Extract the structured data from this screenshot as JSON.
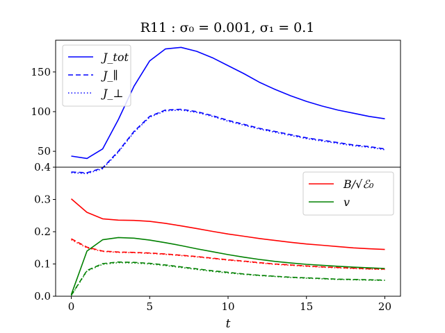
{
  "chart_data": [
    {
      "type": "line",
      "title": "R11 : σ₀ = 0.001, σ₁ = 0.1",
      "x": [
        0,
        1,
        2,
        3,
        4,
        5,
        6,
        7,
        8,
        9,
        10,
        11,
        12,
        13,
        14,
        15,
        16,
        17,
        18,
        19,
        20
      ],
      "xlim": [
        -1,
        21
      ],
      "ylim": [
        30,
        190
      ],
      "yticks": [
        50,
        100,
        150
      ],
      "xlabel": "",
      "ylabel": "",
      "grid": false,
      "legend_position": "top-left",
      "series": [
        {
          "name": "J_tot",
          "color": "#0000ff",
          "style": "solid",
          "values": [
            44,
            41,
            53,
            90,
            132,
            164,
            179,
            181,
            176,
            168,
            158,
            148,
            137,
            128,
            120,
            113,
            107,
            102,
            98,
            94,
            91
          ]
        },
        {
          "name": "J_∥",
          "color": "#0000ff",
          "style": "dashed",
          "values": [
            24,
            23,
            29,
            50,
            75,
            94,
            102,
            103,
            100,
            95,
            89,
            84,
            79,
            75,
            71,
            67,
            64,
            61,
            58,
            56,
            53
          ]
        },
        {
          "name": "J_⊥",
          "color": "#0000ff",
          "style": "dotted",
          "values": [
            23,
            22,
            28,
            49,
            74,
            93,
            101,
            102,
            99,
            94,
            88,
            83,
            78,
            74,
            70,
            66,
            63,
            60,
            57,
            55,
            52
          ]
        }
      ]
    },
    {
      "type": "line",
      "x": [
        0,
        1,
        2,
        3,
        4,
        5,
        6,
        7,
        8,
        9,
        10,
        11,
        12,
        13,
        14,
        15,
        16,
        17,
        18,
        19,
        20
      ],
      "xlim": [
        -1,
        21
      ],
      "ylim": [
        0,
        0.4
      ],
      "yticks": [
        0.0,
        0.1,
        0.2,
        0.3,
        0.4
      ],
      "xticks": [
        0,
        5,
        10,
        15,
        20
      ],
      "xlabel": "t",
      "ylabel": "",
      "grid": false,
      "legend_position": "top-right",
      "series": [
        {
          "name": "B/√ℰ₀",
          "color": "#ff0000",
          "style": "solid",
          "values": [
            0.302,
            0.26,
            0.24,
            0.236,
            0.235,
            0.232,
            0.226,
            0.218,
            0.21,
            0.201,
            0.193,
            0.186,
            0.179,
            0.173,
            0.167,
            0.162,
            0.158,
            0.154,
            0.15,
            0.147,
            0.145
          ]
        },
        {
          "color": "#ff0000",
          "style": "dashed",
          "values": [
            0.178,
            0.152,
            0.14,
            0.137,
            0.136,
            0.134,
            0.131,
            0.127,
            0.123,
            0.118,
            0.113,
            0.109,
            0.104,
            0.1,
            0.097,
            0.094,
            0.091,
            0.089,
            0.087,
            0.085,
            0.084
          ]
        },
        {
          "color": "#ff0000",
          "style": "dotted",
          "values": [
            0.175,
            0.15,
            0.139,
            0.136,
            0.135,
            0.133,
            0.13,
            0.126,
            0.122,
            0.117,
            0.112,
            0.108,
            0.103,
            0.099,
            0.096,
            0.093,
            0.09,
            0.088,
            0.086,
            0.084,
            0.083
          ]
        },
        {
          "name": "v",
          "color": "#008000",
          "style": "solid",
          "values": [
            0.005,
            0.14,
            0.175,
            0.182,
            0.18,
            0.174,
            0.166,
            0.157,
            0.147,
            0.138,
            0.129,
            0.121,
            0.114,
            0.108,
            0.103,
            0.099,
            0.096,
            0.093,
            0.09,
            0.088,
            0.086
          ]
        },
        {
          "color": "#008000",
          "style": "dashed",
          "values": [
            0.003,
            0.08,
            0.101,
            0.106,
            0.105,
            0.102,
            0.097,
            0.091,
            0.085,
            0.079,
            0.074,
            0.069,
            0.065,
            0.062,
            0.059,
            0.057,
            0.055,
            0.053,
            0.052,
            0.051,
            0.05
          ]
        },
        {
          "color": "#008000",
          "style": "dotted",
          "values": [
            0.002,
            0.078,
            0.099,
            0.104,
            0.103,
            0.1,
            0.095,
            0.089,
            0.083,
            0.077,
            0.072,
            0.068,
            0.064,
            0.061,
            0.058,
            0.056,
            0.054,
            0.052,
            0.051,
            0.05,
            0.049
          ]
        }
      ]
    }
  ]
}
